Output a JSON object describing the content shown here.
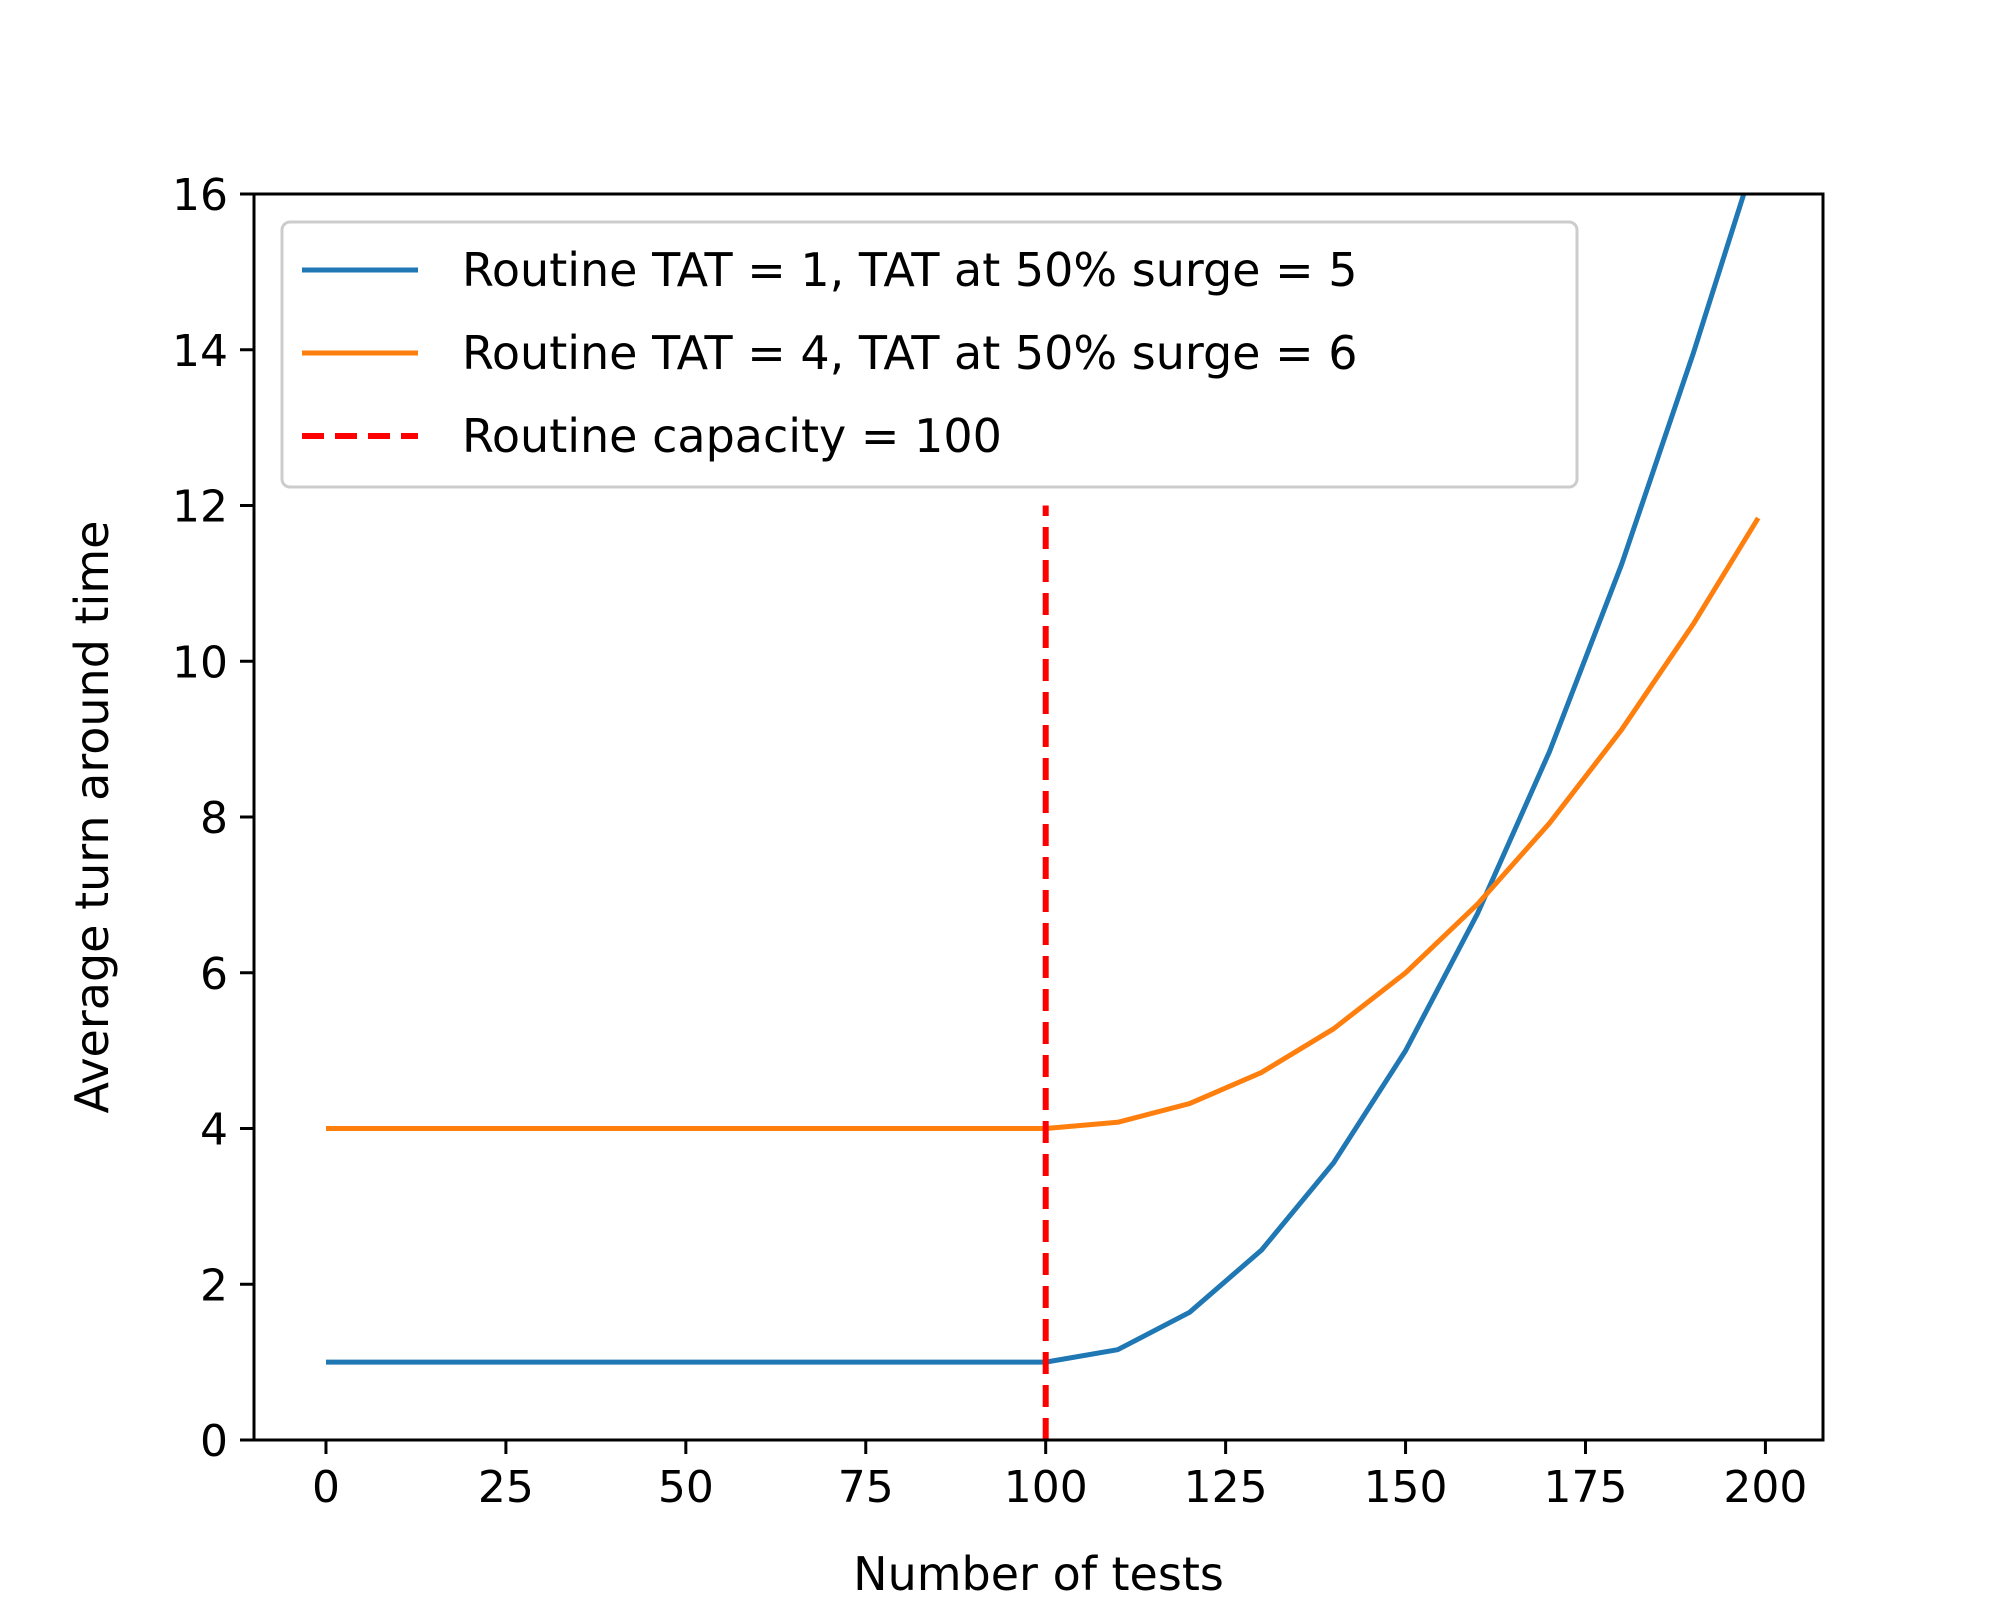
{
  "chart_data": {
    "type": "line",
    "title": "",
    "xlabel": "Number of tests",
    "ylabel": "Average turn around time",
    "xlim": [
      -10,
      208
    ],
    "ylim": [
      0,
      16
    ],
    "xticks": [
      0,
      25,
      50,
      75,
      100,
      125,
      150,
      175,
      200
    ],
    "yticks": [
      0,
      2,
      4,
      6,
      8,
      10,
      12,
      14,
      16
    ],
    "grid": false,
    "legend_position": "top-left",
    "series": [
      {
        "name": "Routine TAT = 1, TAT at 50% surge = 5",
        "color": "#1f77b4",
        "style": "solid",
        "x": [
          0,
          25,
          50,
          75,
          100,
          110,
          120,
          130,
          140,
          150,
          160,
          170,
          180,
          190,
          197
        ],
        "y": [
          1,
          1,
          1,
          1,
          1,
          1.16,
          1.64,
          2.44,
          3.56,
          5.0,
          6.76,
          8.84,
          11.24,
          13.96,
          16.0
        ]
      },
      {
        "name": "Routine TAT = 4, TAT at 50% surge = 6",
        "color": "#ff7f0e",
        "style": "solid",
        "x": [
          0,
          25,
          50,
          75,
          100,
          110,
          120,
          130,
          140,
          150,
          160,
          170,
          180,
          190,
          199
        ],
        "y": [
          4,
          4,
          4,
          4,
          4,
          4.08,
          4.32,
          4.72,
          5.28,
          6.0,
          6.88,
          7.92,
          9.12,
          10.48,
          11.84
        ]
      },
      {
        "name": "Routine capacity = 100",
        "color": "#ff0000",
        "style": "dashed",
        "x": [
          100,
          100
        ],
        "y": [
          0,
          12
        ]
      }
    ]
  }
}
